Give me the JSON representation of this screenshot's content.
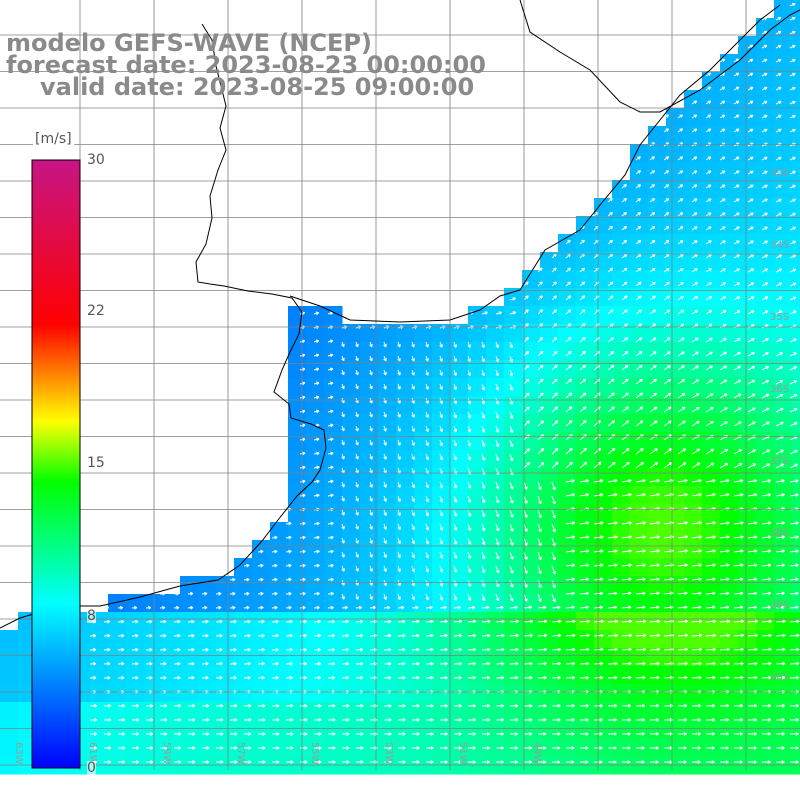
{
  "title": {
    "line1": "modelo GEFS-WAVE (NCEP)",
    "line2": "forecast date: 2023-08-23 00:00:00",
    "line3": "valid date: 2023-08-25 09:00:00"
  },
  "colorbar": {
    "unit": "[m/s]",
    "min": 0,
    "max": 30,
    "tick_labels": [
      "30",
      "22",
      "15",
      "8",
      "0"
    ],
    "tick_values": [
      30,
      22,
      15,
      8,
      0
    ],
    "colors": [
      "#0000ff",
      "#00ffff",
      "#00ff00",
      "#ffff00",
      "#ff0000",
      "#c71585"
    ]
  },
  "map": {
    "lat_labels": [
      "33S",
      "34S",
      "35S",
      "36S",
      "37S",
      "38S",
      "39S",
      "40S"
    ],
    "lat_values": [
      -33,
      -34,
      -35,
      -36,
      -37,
      -38,
      -39,
      -40
    ],
    "lon_labels": [
      "63W",
      "61W",
      "59W",
      "57W",
      "55W",
      "53W",
      "51W",
      "49W"
    ],
    "lon_values": [
      -63,
      -61,
      -59,
      -57,
      -55,
      -53,
      -51,
      -49
    ],
    "field": "wind speed with direction arrows",
    "land_color": "#ffffff",
    "grid_color": "#808080",
    "arrow_color": "#ffffff"
  }
}
